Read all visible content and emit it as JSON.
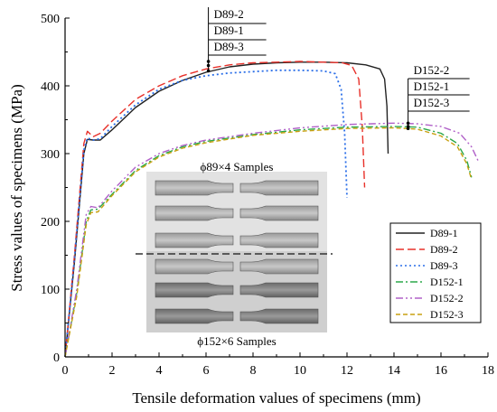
{
  "chart_data": {
    "type": "line",
    "xlabel": "Tensile deformation values of specimens (mm)",
    "ylabel": "Stress values of specimens (MPa)",
    "xlim": [
      0,
      18
    ],
    "ylim": [
      0,
      500
    ],
    "x_ticks": [
      0,
      2,
      4,
      6,
      8,
      10,
      12,
      14,
      16,
      18
    ],
    "y_ticks": [
      0,
      100,
      200,
      300,
      400,
      500
    ],
    "grid": false,
    "legend_position": "bottom-right",
    "series": [
      {
        "name": "D89-1",
        "color": "#222222",
        "style": "solid",
        "points": [
          [
            0,
            0
          ],
          [
            0.4,
            140
          ],
          [
            0.8,
            300
          ],
          [
            0.95,
            321
          ],
          [
            1.2,
            320
          ],
          [
            1.5,
            320
          ],
          [
            2,
            335
          ],
          [
            3,
            368
          ],
          [
            4,
            392
          ],
          [
            5,
            408
          ],
          [
            6,
            420
          ],
          [
            7,
            428
          ],
          [
            8,
            432
          ],
          [
            9,
            434
          ],
          [
            10,
            435
          ],
          [
            11,
            435
          ],
          [
            12,
            434
          ],
          [
            12.8,
            431
          ],
          [
            13.4,
            425
          ],
          [
            13.6,
            410
          ],
          [
            13.7,
            370
          ],
          [
            13.75,
            300
          ]
        ]
      },
      {
        "name": "D89-2",
        "color": "#e8312a",
        "style": "dash",
        "points": [
          [
            0,
            0
          ],
          [
            0.4,
            150
          ],
          [
            0.8,
            315
          ],
          [
            0.95,
            333
          ],
          [
            1.2,
            325
          ],
          [
            1.5,
            330
          ],
          [
            2,
            348
          ],
          [
            3,
            380
          ],
          [
            4,
            400
          ],
          [
            5,
            415
          ],
          [
            6,
            425
          ],
          [
            7,
            431
          ],
          [
            8,
            434
          ],
          [
            9,
            435
          ],
          [
            10,
            436
          ],
          [
            11,
            435
          ],
          [
            11.8,
            434
          ],
          [
            12.2,
            430
          ],
          [
            12.5,
            410
          ],
          [
            12.65,
            340
          ],
          [
            12.75,
            250
          ]
        ]
      },
      {
        "name": "D89-3",
        "color": "#2a6ee8",
        "style": "dot",
        "points": [
          [
            0,
            0
          ],
          [
            0.4,
            145
          ],
          [
            0.8,
            305
          ],
          [
            0.95,
            323
          ],
          [
            1.2,
            320
          ],
          [
            1.5,
            322
          ],
          [
            2,
            340
          ],
          [
            3,
            372
          ],
          [
            4,
            395
          ],
          [
            5,
            408
          ],
          [
            6,
            415
          ],
          [
            7,
            419
          ],
          [
            8,
            421
          ],
          [
            9,
            423
          ],
          [
            10,
            423
          ],
          [
            11,
            422
          ],
          [
            11.5,
            418
          ],
          [
            11.75,
            395
          ],
          [
            11.9,
            330
          ],
          [
            12.0,
            235
          ]
        ]
      },
      {
        "name": "D152-1",
        "color": "#2ba84a",
        "style": "dashdot",
        "points": [
          [
            0,
            0
          ],
          [
            0.5,
            95
          ],
          [
            0.9,
            200
          ],
          [
            1.1,
            217
          ],
          [
            1.4,
            218
          ],
          [
            2,
            240
          ],
          [
            3,
            275
          ],
          [
            4,
            297
          ],
          [
            5,
            310
          ],
          [
            6,
            318
          ],
          [
            8,
            328
          ],
          [
            10,
            335
          ],
          [
            12,
            339
          ],
          [
            14,
            340
          ],
          [
            15,
            339
          ],
          [
            16,
            330
          ],
          [
            16.7,
            315
          ],
          [
            17.1,
            290
          ],
          [
            17.3,
            265
          ]
        ]
      },
      {
        "name": "D152-2",
        "color": "#b060c8",
        "style": "dashdotdot",
        "points": [
          [
            0,
            0
          ],
          [
            0.5,
            100
          ],
          [
            0.9,
            210
          ],
          [
            1.1,
            222
          ],
          [
            1.4,
            220
          ],
          [
            2,
            245
          ],
          [
            3,
            280
          ],
          [
            4,
            300
          ],
          [
            5,
            312
          ],
          [
            6,
            320
          ],
          [
            8,
            330
          ],
          [
            10,
            338
          ],
          [
            12,
            343
          ],
          [
            14,
            345
          ],
          [
            15,
            344
          ],
          [
            16,
            340
          ],
          [
            16.8,
            330
          ],
          [
            17.3,
            310
          ],
          [
            17.6,
            288
          ]
        ]
      },
      {
        "name": "D152-3",
        "color": "#c8a010",
        "style": "shortdash",
        "points": [
          [
            0,
            0
          ],
          [
            0.5,
            90
          ],
          [
            0.9,
            195
          ],
          [
            1.1,
            213
          ],
          [
            1.4,
            214
          ],
          [
            2,
            238
          ],
          [
            3,
            273
          ],
          [
            4,
            295
          ],
          [
            5,
            308
          ],
          [
            6,
            316
          ],
          [
            8,
            327
          ],
          [
            10,
            333
          ],
          [
            12,
            337
          ],
          [
            14,
            338
          ],
          [
            15,
            336
          ],
          [
            16,
            326
          ],
          [
            16.7,
            310
          ],
          [
            17.1,
            285
          ],
          [
            17.3,
            262
          ]
        ]
      }
    ],
    "annotations": {
      "d89": {
        "labels": [
          "D89-2",
          "D89-1",
          "D89-3"
        ],
        "x": 6.1,
        "y_marks": [
          436,
          430,
          422
        ]
      },
      "d152": {
        "labels": [
          "D152-2",
          "D152-1",
          "D152-3"
        ],
        "x": 14.6,
        "y_marks": [
          345,
          340,
          337
        ]
      }
    },
    "photo": {
      "top_label": "ϕ89×4 Samples",
      "bottom_label": "ϕ152×6 Samples",
      "specimens": [
        "89-1",
        "89-2",
        "89-3",
        "152-1",
        "152-2",
        "152-3"
      ]
    }
  }
}
